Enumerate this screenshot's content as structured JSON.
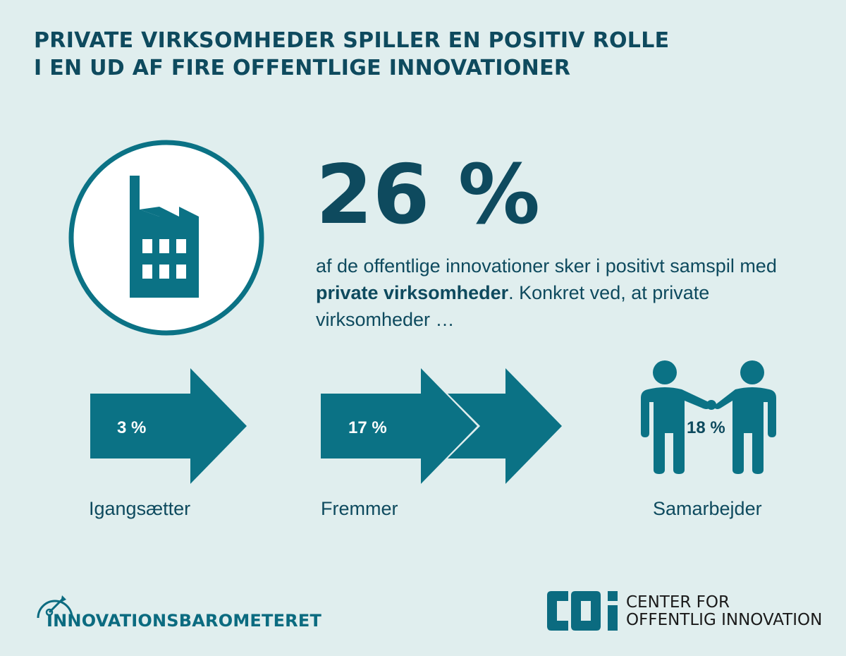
{
  "title": {
    "line1": "PRIVATE VIRKSOMHEDER SPILLER EN POSITIV ROLLE",
    "line2": "I EN UD AF FIRE OFFENTLIGE INNOVATIONER"
  },
  "headline": {
    "value": "26 %",
    "text_pre": "af de offentlige innovationer sker i positivt samspil med ",
    "text_bold": "private virksomheder",
    "text_post": ". Konkret ved, at private virksomheder …"
  },
  "categories": [
    {
      "label": "Igangsætter",
      "value": "3 %",
      "icon": "single-arrow-icon"
    },
    {
      "label": "Fremmer",
      "value": "17 %",
      "icon": "double-arrow-icon"
    },
    {
      "label": "Samarbejder",
      "value": "18 %",
      "icon": "handshake-people-icon"
    }
  ],
  "footer": {
    "left_brand": "INNOVATIONSBAROMETERET",
    "right_logo": "COI",
    "right_line1": "CENTER FOR",
    "right_line2": "OFFENTLIG INNOVATION"
  },
  "colors": {
    "background": "#e0eeee",
    "primary": "#0e4a5e",
    "accent": "#0b7285",
    "white": "#ffffff"
  }
}
